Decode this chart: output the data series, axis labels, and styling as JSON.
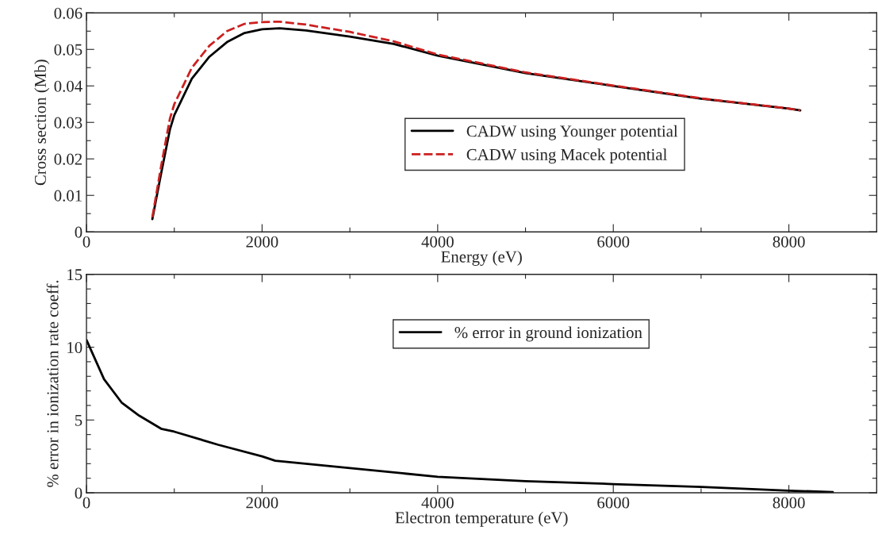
{
  "chart_data": [
    {
      "type": "line",
      "xlabel": "Energy (eV)",
      "ylabel": "Cross section (Mb)",
      "xlim": [
        0,
        9000
      ],
      "ylim": [
        0,
        0.06
      ],
      "xticks": [
        0,
        {
          "value": 1000,
          "label": null
        },
        2000,
        {
          "value": 3000,
          "label": null
        },
        4000,
        {
          "value": 5000,
          "label": null
        },
        6000,
        {
          "value": 7000,
          "label": null
        },
        8000
      ],
      "yticks": [
        0,
        {
          "value": 0.005,
          "label": null
        },
        0.01,
        {
          "value": 0.015,
          "label": null
        },
        0.02,
        {
          "value": 0.025,
          "label": null
        },
        0.03,
        {
          "value": 0.035,
          "label": null
        },
        0.04,
        {
          "value": 0.045,
          "label": null
        },
        0.05,
        {
          "value": 0.055,
          "label": null
        },
        0.06
      ],
      "x": [
        750,
        850,
        950,
        1000,
        1200,
        1400,
        1600,
        1800,
        2000,
        2200,
        2500,
        3000,
        3500,
        4000,
        5000,
        6000,
        7000,
        8000,
        8130
      ],
      "legend": "center right",
      "grid": false,
      "series": [
        {
          "name": "CADW using Younger potential",
          "color": "#000000",
          "line_style": "solid",
          "values": [
            0.0035,
            0.016,
            0.028,
            0.032,
            0.042,
            0.048,
            0.052,
            0.0545,
            0.0555,
            0.0558,
            0.0552,
            0.0535,
            0.0515,
            0.0483,
            0.0435,
            0.04,
            0.0365,
            0.0338,
            0.0333
          ]
        },
        {
          "name": "CADW using Macek potential",
          "color": "#cc2020",
          "line_style": "dashed",
          "values": [
            0.004,
            0.018,
            0.031,
            0.035,
            0.045,
            0.051,
            0.055,
            0.057,
            0.0575,
            0.0576,
            0.0568,
            0.0548,
            0.0522,
            0.0486,
            0.0437,
            0.0401,
            0.0366,
            0.0338,
            0.0333
          ]
        }
      ]
    },
    {
      "type": "line",
      "xlabel": "Electron temperature (eV)",
      "ylabel": "% error in ionization rate coeff.",
      "xlim": [
        0,
        9000
      ],
      "ylim": [
        0,
        15
      ],
      "xticks": [
        0,
        {
          "value": 1000,
          "label": null
        },
        2000,
        {
          "value": 3000,
          "label": null
        },
        4000,
        {
          "value": 5000,
          "label": null
        },
        6000,
        {
          "value": 7000,
          "label": null
        },
        8000
      ],
      "yticks": [
        0,
        {
          "value": 1,
          "label": null
        },
        {
          "value": 2,
          "label": null
        },
        {
          "value": 3,
          "label": null
        },
        {
          "value": 4,
          "label": null
        },
        5,
        {
          "value": 6,
          "label": null
        },
        {
          "value": 7,
          "label": null
        },
        {
          "value": 8,
          "label": null
        },
        {
          "value": 9,
          "label": null
        },
        10,
        {
          "value": 11,
          "label": null
        },
        {
          "value": 12,
          "label": null
        },
        {
          "value": 13,
          "label": null
        },
        {
          "value": 14,
          "label": null
        },
        15
      ],
      "x": [
        0,
        200,
        400,
        600,
        850,
        1000,
        1500,
        2000,
        2150,
        3000,
        4000,
        4500,
        5000,
        6000,
        7000,
        8000,
        8500
      ],
      "legend": "upper right",
      "grid": false,
      "series": [
        {
          "name": "% error in ground ionization",
          "color": "#000000",
          "line_style": "solid",
          "values": [
            10.5,
            7.8,
            6.2,
            5.3,
            4.4,
            4.2,
            3.3,
            2.5,
            2.2,
            1.7,
            1.1,
            0.95,
            0.8,
            0.6,
            0.4,
            0.15,
            0.05
          ]
        }
      ]
    }
  ]
}
